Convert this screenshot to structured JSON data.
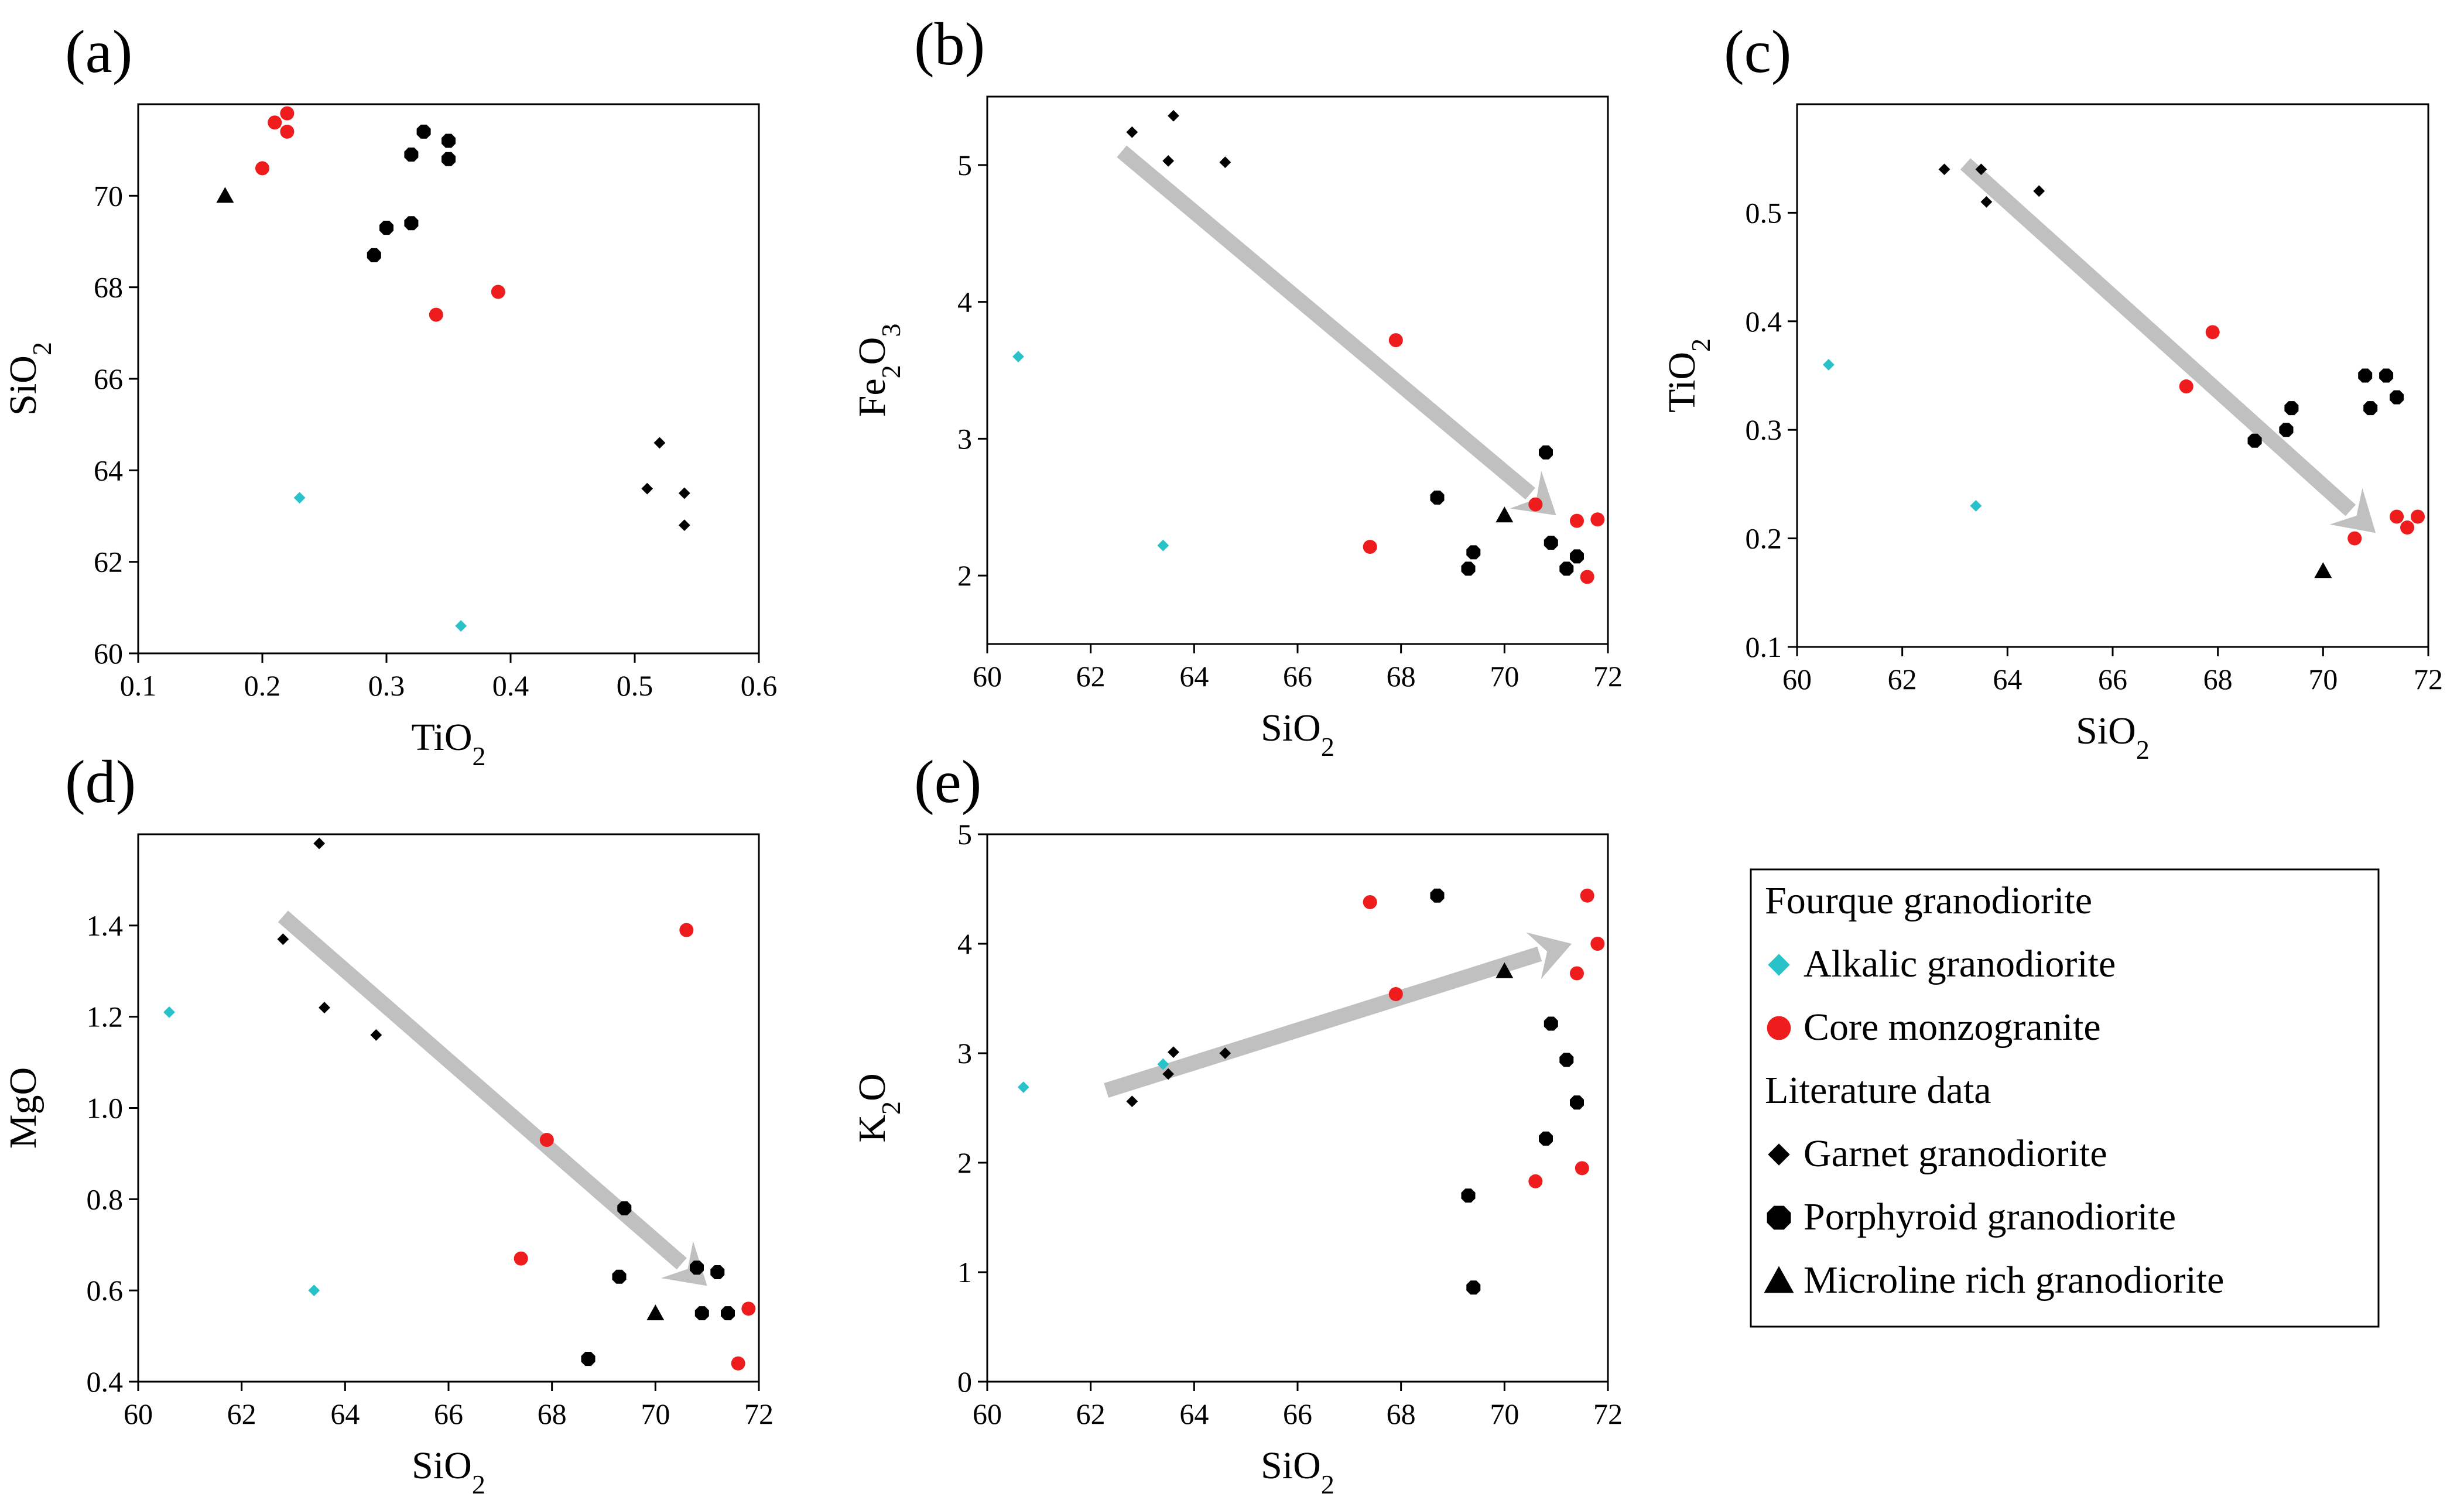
{
  "colors": {
    "alkalic": "#28c2c8",
    "core": "#ee1c1c",
    "literature": "#000000",
    "arrow": "#c0c0c0"
  },
  "legend": {
    "items": [
      {
        "label": "Fourque granodiorite",
        "marker": "none",
        "color": ""
      },
      {
        "label": "Alkalic granodiorite",
        "marker": "diamond",
        "color": "#28c2c8"
      },
      {
        "label": "Core monzogranite",
        "marker": "circle",
        "color": "#ee1c1c"
      },
      {
        "label": "Literature data",
        "marker": "none",
        "color": ""
      },
      {
        "label": "Garnet granodiorite",
        "marker": "diamond",
        "color": "#000000"
      },
      {
        "label": "Porphyroid granodiorite",
        "marker": "octagon",
        "color": "#000000"
      },
      {
        "label": "Microline rich granodiorite",
        "marker": "triangle",
        "color": "#000000"
      }
    ]
  },
  "chart_data": [
    {
      "id": "a",
      "panel_label": "(a)",
      "type": "scatter",
      "xlabel": {
        "main": "TiO",
        "sub": "2"
      },
      "ylabel": {
        "main": "SiO",
        "sub": "2"
      },
      "xlim": [
        0.1,
        0.6
      ],
      "ylim": [
        60,
        72
      ],
      "xticks": [
        "0.1",
        "0.2",
        "0.3",
        "0.4",
        "0.5",
        "0.6"
      ],
      "yticks": [
        "60",
        "62",
        "64",
        "66",
        "68",
        "70"
      ],
      "series": [
        {
          "name": "Alkalic granodiorite",
          "marker": "diamond",
          "color": "#28c2c8",
          "points": [
            [
              0.23,
              63.4
            ],
            [
              0.36,
              60.6
            ]
          ]
        },
        {
          "name": "Core monzogranite",
          "marker": "circle",
          "color": "#ee1c1c",
          "points": [
            [
              0.21,
              71.6
            ],
            [
              0.22,
              71.8
            ],
            [
              0.22,
              71.4
            ],
            [
              0.2,
              70.6
            ],
            [
              0.34,
              67.4
            ],
            [
              0.39,
              67.9
            ]
          ]
        },
        {
          "name": "Garnet granodiorite",
          "marker": "diamond",
          "color": "#000000",
          "points": [
            [
              0.52,
              64.6
            ],
            [
              0.51,
              63.6
            ],
            [
              0.54,
              63.5
            ],
            [
              0.54,
              62.8
            ]
          ]
        },
        {
          "name": "Porphyroid granodiorite",
          "marker": "octagon",
          "color": "#000000",
          "points": [
            [
              0.33,
              71.4
            ],
            [
              0.35,
              71.2
            ],
            [
              0.32,
              70.9
            ],
            [
              0.35,
              70.8
            ],
            [
              0.3,
              69.3
            ],
            [
              0.32,
              69.4
            ],
            [
              0.29,
              68.7
            ]
          ]
        },
        {
          "name": "Microline rich granodiorite",
          "marker": "triangle",
          "color": "#000000",
          "points": [
            [
              0.17,
              70.0
            ]
          ]
        }
      ]
    },
    {
      "id": "b",
      "panel_label": "(b)",
      "type": "scatter",
      "xlabel": {
        "main": "SiO",
        "sub": "2"
      },
      "ylabel": {
        "main": "Fe",
        "sub": "2",
        "main2": "O",
        "sub2": "3"
      },
      "xlim": [
        60,
        72
      ],
      "ylim": [
        1.5,
        5.5
      ],
      "xticks": [
        "60",
        "62",
        "64",
        "66",
        "68",
        "70",
        "72"
      ],
      "yticks": [
        "2",
        "3",
        "4",
        "5"
      ],
      "arrow": {
        "from": [
          62.6,
          5.1
        ],
        "to": [
          71.0,
          2.44
        ]
      },
      "series": [
        {
          "name": "Alkalic granodiorite",
          "marker": "diamond",
          "color": "#28c2c8",
          "points": [
            [
              60.6,
              3.6
            ],
            [
              63.4,
              2.22
            ]
          ]
        },
        {
          "name": "Core monzogranite",
          "marker": "circle",
          "color": "#ee1c1c",
          "points": [
            [
              67.9,
              3.72
            ],
            [
              67.4,
              2.21
            ],
            [
              70.6,
              2.52
            ],
            [
              71.4,
              2.4
            ],
            [
              71.8,
              2.41
            ],
            [
              71.6,
              1.99
            ]
          ]
        },
        {
          "name": "Garnet granodiorite",
          "marker": "diamond",
          "color": "#000000",
          "points": [
            [
              62.8,
              5.24
            ],
            [
              63.6,
              5.36
            ],
            [
              63.5,
              5.03
            ],
            [
              64.6,
              5.02
            ]
          ]
        },
        {
          "name": "Porphyroid granodiorite",
          "marker": "octagon",
          "color": "#000000",
          "points": [
            [
              68.7,
              2.57
            ],
            [
              70.8,
              2.9
            ],
            [
              69.4,
              2.17
            ],
            [
              69.3,
              2.05
            ],
            [
              70.9,
              2.24
            ],
            [
              71.4,
              2.14
            ],
            [
              71.2,
              2.05
            ]
          ]
        },
        {
          "name": "Microline rich granodiorite",
          "marker": "triangle",
          "color": "#000000",
          "points": [
            [
              70.0,
              2.44
            ]
          ]
        }
      ]
    },
    {
      "id": "c",
      "panel_label": "(c)",
      "type": "scatter",
      "xlabel": {
        "main": "SiO",
        "sub": "2"
      },
      "ylabel": {
        "main": "TiO",
        "sub": "2"
      },
      "xlim": [
        60,
        72
      ],
      "ylim": [
        0.1,
        0.6
      ],
      "xticks": [
        "60",
        "62",
        "64",
        "66",
        "68",
        "70",
        "72"
      ],
      "yticks": [
        "0.1",
        "0.2",
        "0.3",
        "0.4",
        "0.5"
      ],
      "arrow": {
        "from": [
          63.2,
          0.545
        ],
        "to": [
          71.0,
          0.205
        ]
      },
      "series": [
        {
          "name": "Alkalic granodiorite",
          "marker": "diamond",
          "color": "#28c2c8",
          "points": [
            [
              60.6,
              0.36
            ],
            [
              63.4,
              0.23
            ]
          ]
        },
        {
          "name": "Core monzogranite",
          "marker": "circle",
          "color": "#ee1c1c",
          "points": [
            [
              67.9,
              0.39
            ],
            [
              67.4,
              0.34
            ],
            [
              70.6,
              0.2
            ],
            [
              71.4,
              0.22
            ],
            [
              71.6,
              0.21
            ],
            [
              71.8,
              0.22
            ]
          ]
        },
        {
          "name": "Garnet granodiorite",
          "marker": "diamond",
          "color": "#000000",
          "points": [
            [
              62.8,
              0.54
            ],
            [
              63.5,
              0.54
            ],
            [
              63.6,
              0.51
            ],
            [
              64.6,
              0.52
            ]
          ]
        },
        {
          "name": "Porphyroid granodiorite",
          "marker": "octagon",
          "color": "#000000",
          "points": [
            [
              70.8,
              0.35
            ],
            [
              71.2,
              0.35
            ],
            [
              71.4,
              0.33
            ],
            [
              70.9,
              0.32
            ],
            [
              69.4,
              0.32
            ],
            [
              69.3,
              0.3
            ],
            [
              68.7,
              0.29
            ]
          ]
        },
        {
          "name": "Microline rich granodiorite",
          "marker": "triangle",
          "color": "#000000",
          "points": [
            [
              70.0,
              0.17
            ]
          ]
        }
      ]
    },
    {
      "id": "d",
      "panel_label": "(d)",
      "type": "scatter",
      "xlabel": {
        "main": "SiO",
        "sub": "2"
      },
      "ylabel": {
        "main": "MgO",
        "sub": ""
      },
      "xlim": [
        60,
        72
      ],
      "ylim": [
        0.4,
        1.6
      ],
      "xticks": [
        "60",
        "62",
        "64",
        "66",
        "68",
        "70",
        "72"
      ],
      "yticks": [
        "0.4",
        "0.6",
        "0.8",
        "1.0",
        "1.2",
        "1.4"
      ],
      "arrow": {
        "from": [
          62.8,
          1.42
        ],
        "to": [
          71.0,
          0.61
        ]
      },
      "series": [
        {
          "name": "Alkalic granodiorite",
          "marker": "diamond",
          "color": "#28c2c8",
          "points": [
            [
              60.6,
              1.21
            ],
            [
              63.4,
              0.6
            ]
          ]
        },
        {
          "name": "Core monzogranite",
          "marker": "circle",
          "color": "#ee1c1c",
          "points": [
            [
              70.6,
              1.39
            ],
            [
              67.9,
              0.93
            ],
            [
              67.4,
              0.67
            ],
            [
              71.4,
              0.55
            ],
            [
              71.8,
              0.56
            ],
            [
              71.6,
              0.44
            ]
          ]
        },
        {
          "name": "Garnet granodiorite",
          "marker": "diamond",
          "color": "#000000",
          "points": [
            [
              63.5,
              1.58
            ],
            [
              62.8,
              1.37
            ],
            [
              63.6,
              1.22
            ],
            [
              64.6,
              1.16
            ]
          ]
        },
        {
          "name": "Porphyroid granodiorite",
          "marker": "octagon",
          "color": "#000000",
          "points": [
            [
              69.4,
              0.78
            ],
            [
              69.3,
              0.63
            ],
            [
              70.8,
              0.65
            ],
            [
              71.2,
              0.64
            ],
            [
              70.9,
              0.55
            ],
            [
              71.4,
              0.55
            ],
            [
              68.7,
              0.45
            ]
          ]
        },
        {
          "name": "Microline rich granodiorite",
          "marker": "triangle",
          "color": "#000000",
          "points": [
            [
              70.0,
              0.55
            ]
          ]
        }
      ]
    },
    {
      "id": "e",
      "panel_label": "(e)",
      "type": "scatter",
      "xlabel": {
        "main": "SiO",
        "sub": "2"
      },
      "ylabel": {
        "main": "K",
        "sub": "2",
        "main2": "O",
        "sub2": ""
      },
      "xlim": [
        60,
        72
      ],
      "ylim": [
        0,
        5
      ],
      "xticks": [
        "60",
        "62",
        "64",
        "66",
        "68",
        "70",
        "72"
      ],
      "yticks": [
        "0",
        "1",
        "2",
        "3",
        "4",
        "5"
      ],
      "arrow": {
        "from": [
          62.3,
          2.66
        ],
        "to": [
          71.3,
          4.0
        ]
      },
      "series": [
        {
          "name": "Alkalic granodiorite",
          "marker": "diamond",
          "color": "#28c2c8",
          "points": [
            [
              60.7,
              2.69
            ],
            [
              63.4,
              2.9
            ]
          ]
        },
        {
          "name": "Core monzogranite",
          "marker": "circle",
          "color": "#ee1c1c",
          "points": [
            [
              67.4,
              4.38
            ],
            [
              67.9,
              3.54
            ],
            [
              71.6,
              4.44
            ],
            [
              71.8,
              4.0
            ],
            [
              71.4,
              3.73
            ],
            [
              70.6,
              1.83
            ],
            [
              71.5,
              1.95
            ]
          ]
        },
        {
          "name": "Garnet granodiorite",
          "marker": "diamond",
          "color": "#000000",
          "points": [
            [
              62.8,
              2.56
            ],
            [
              63.5,
              2.81
            ],
            [
              63.6,
              3.01
            ],
            [
              64.6,
              3.0
            ]
          ]
        },
        {
          "name": "Porphyroid granodiorite",
          "marker": "octagon",
          "color": "#000000",
          "points": [
            [
              68.7,
              4.44
            ],
            [
              70.9,
              3.27
            ],
            [
              71.2,
              2.94
            ],
            [
              71.4,
              2.55
            ],
            [
              70.8,
              2.22
            ],
            [
              69.3,
              1.7
            ],
            [
              69.4,
              0.86
            ]
          ]
        },
        {
          "name": "Microline rich granodiorite",
          "marker": "triangle",
          "color": "#000000",
          "points": [
            [
              70.0,
              3.75
            ]
          ]
        }
      ]
    }
  ]
}
